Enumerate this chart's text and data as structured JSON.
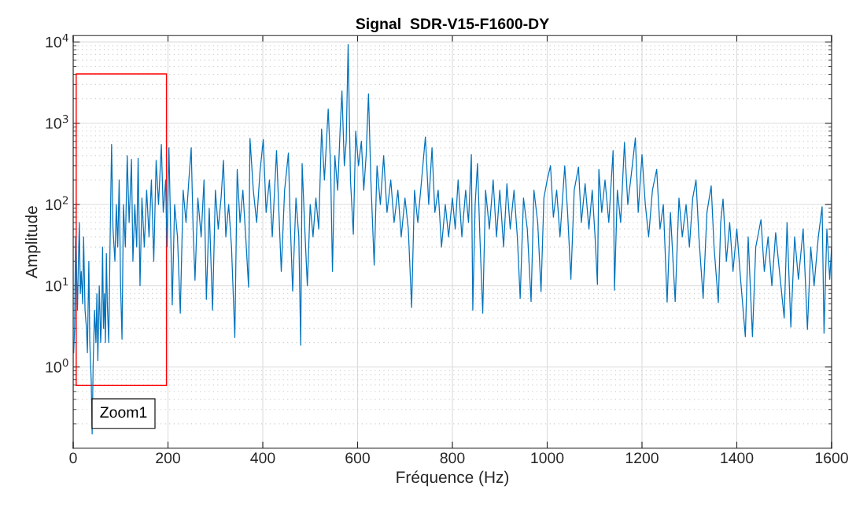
{
  "chart_data": {
    "type": "line",
    "title": "Signal  SDR-V15-F1600-DY",
    "xlabel": "Fréquence (Hz)",
    "ylabel": "Amplitude",
    "log": "y",
    "grid": true,
    "line_style": "solid",
    "marker": "none",
    "xlim": [
      0,
      1600
    ],
    "xticks": [
      0,
      200,
      400,
      600,
      800,
      1000,
      1200,
      1400,
      1600
    ],
    "ylim": [
      0.1,
      12000
    ],
    "yticks": [
      {
        "value": 1,
        "label": "10$^{0}$"
      },
      {
        "value": 10,
        "label": "10$^{1}$"
      },
      {
        "value": 100,
        "label": "10$^{2}$"
      },
      {
        "value": 1000,
        "label": "10$^{3}$"
      },
      {
        "value": 10000,
        "label": "10$^{4}$"
      }
    ],
    "annotations": [
      "Zoom1"
    ],
    "series": [
      {
        "color": "#0072bd",
        "x": [
          1,
          3,
          5,
          7,
          9,
          11,
          13,
          15,
          17,
          20,
          22,
          25,
          28,
          30,
          33,
          35,
          38,
          40,
          42,
          45,
          48,
          50,
          52,
          55,
          58,
          60,
          62,
          64,
          66,
          68,
          70,
          72,
          75,
          78,
          81,
          84,
          88,
          91,
          94,
          97,
          100,
          103,
          106,
          110,
          114,
          118,
          123,
          126,
          130,
          134,
          137,
          141,
          145,
          150,
          155,
          160,
          165,
          170,
          175,
          180,
          186,
          190,
          195,
          198,
          202,
          209,
          214,
          220,
          226,
          232,
          238,
          244,
          249,
          253,
          257,
          263,
          270,
          276,
          281,
          287,
          294,
          300,
          306,
          312,
          317,
          322,
          328,
          334,
          341,
          346,
          352,
          358,
          364,
          370,
          373,
          380,
          387,
          394,
          401,
          407,
          414,
          420,
          429,
          434,
          439,
          446,
          454,
          458,
          463,
          470,
          476,
          480,
          483,
          488,
          494,
          500,
          506,
          512,
          518,
          524,
          530,
          538,
          543,
          547,
          552,
          558,
          563,
          567,
          572,
          576,
          580,
          585,
          591,
          596,
          602,
          608,
          613,
          618,
          623,
          628,
          635,
          641,
          648,
          655,
          662,
          670,
          677,
          685,
          692,
          700,
          707,
          714,
          720,
          727,
          735,
          743,
          750,
          757,
          763,
          770,
          777,
          785,
          792,
          800,
          806,
          812,
          820,
          828,
          834,
          840,
          843,
          848,
          853,
          858,
          864,
          870,
          878,
          886,
          893,
          900,
          908,
          915,
          922,
          930,
          937,
          943,
          950,
          958,
          966,
          972,
          980,
          987,
          993,
          1000,
          1007,
          1013,
          1020,
          1027,
          1037,
          1043,
          1050,
          1057,
          1066,
          1072,
          1080,
          1088,
          1095,
          1101,
          1106,
          1109,
          1115,
          1122,
          1130,
          1139,
          1142,
          1148,
          1155,
          1163,
          1170,
          1178,
          1186,
          1192,
          1200,
          1207,
          1214,
          1222,
          1231,
          1238,
          1245,
          1253,
          1260,
          1270,
          1278,
          1285,
          1293,
          1300,
          1307,
          1314,
          1320,
          1329,
          1337,
          1346,
          1352,
          1361,
          1366,
          1371,
          1378,
          1385,
          1392,
          1400,
          1408,
          1418,
          1424,
          1433,
          1440,
          1451,
          1458,
          1466,
          1474,
          1482,
          1490,
          1500,
          1506,
          1514,
          1522,
          1530,
          1540,
          1549,
          1556,
          1563,
          1572,
          1580,
          1584,
          1590,
          1596,
          1600
        ],
        "values": [
          1.5,
          3,
          40,
          15,
          5,
          20,
          60,
          8,
          15,
          6,
          40,
          5,
          3,
          1.5,
          20,
          2,
          0.7,
          0.15,
          1,
          5,
          2,
          8,
          1.2,
          10,
          2,
          4,
          30,
          3,
          8,
          2,
          25,
          6,
          2,
          40,
          550,
          50,
          20,
          100,
          30,
          200,
          10,
          2.2,
          100,
          30,
          400,
          60,
          360,
          20,
          100,
          30,
          370,
          10,
          120,
          30,
          150,
          40,
          200,
          20,
          350,
          100,
          550,
          80,
          200,
          30,
          500,
          5.8,
          100,
          40,
          4.6,
          150,
          60,
          200,
          500,
          50,
          11.7,
          120,
          40,
          200,
          6.8,
          90,
          5,
          150,
          50,
          120,
          350,
          40,
          100,
          30,
          2.3,
          270,
          60,
          150,
          40,
          9.6,
          650,
          150,
          60,
          250,
          630,
          80,
          200,
          40,
          460,
          80,
          15,
          150,
          430,
          60,
          8.6,
          120,
          40,
          1.85,
          320,
          60,
          10,
          100,
          40,
          120,
          50,
          850,
          200,
          1500,
          300,
          15,
          400,
          150,
          800,
          2500,
          300,
          600,
          9300,
          200,
          43,
          800,
          300,
          600,
          150,
          400,
          2300,
          200,
          18,
          300,
          100,
          400,
          80,
          200,
          60,
          150,
          40,
          120,
          50,
          5.4,
          150,
          60,
          200,
          680,
          100,
          500,
          80,
          150,
          30,
          100,
          40,
          120,
          50,
          200,
          40,
          150,
          60,
          410,
          5,
          100,
          320,
          40,
          4.6,
          150,
          50,
          200,
          40,
          150,
          30,
          180,
          50,
          150,
          40,
          7,
          120,
          50,
          6.4,
          150,
          60,
          8.5,
          120,
          200,
          300,
          70,
          150,
          40,
          300,
          80,
          12,
          150,
          290,
          60,
          180,
          50,
          150,
          40,
          10.4,
          270,
          80,
          200,
          60,
          460,
          8.8,
          150,
          60,
          580,
          100,
          250,
          660,
          80,
          410,
          100,
          40,
          150,
          270,
          50,
          100,
          6.3,
          80,
          6.4,
          120,
          40,
          100,
          30,
          120,
          200,
          40,
          7,
          80,
          170,
          30,
          6.2,
          60,
          117,
          20,
          60,
          15,
          50,
          12,
          2.36,
          40,
          2.36,
          30,
          65,
          15,
          40,
          10,
          45,
          15,
          4,
          60,
          3.1,
          40,
          12,
          50,
          2.9,
          30,
          10,
          40,
          94,
          2.6,
          50,
          12,
          30
        ]
      }
    ]
  }
}
